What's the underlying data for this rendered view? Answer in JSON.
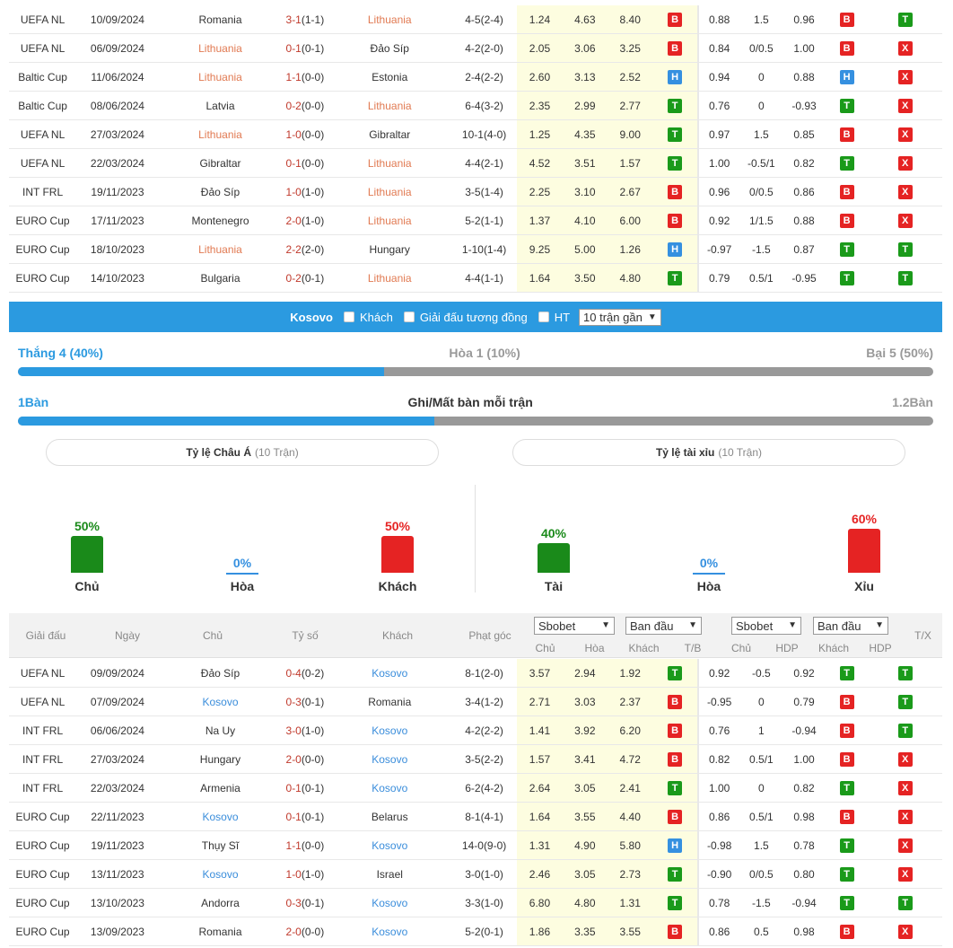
{
  "table1": {
    "rows": [
      {
        "league": "UEFA NL",
        "date": "10/09/2024",
        "home": "Romania",
        "score": "3-1",
        "ht": "(1-1)",
        "away": "Lithuania",
        "hl": "away",
        "corner": "4-5(2-4)",
        "o1": "1.24",
        "o2": "4.63",
        "o3": "8.40",
        "r1": "B",
        "ah": "0.88",
        "hdp": "1.5",
        "aa": "0.96",
        "r2": "B",
        "r3": "T"
      },
      {
        "league": "UEFA NL",
        "date": "06/09/2024",
        "home": "Lithuania",
        "score": "0-1",
        "ht": "(0-1)",
        "away": "Đảo Síp",
        "hl": "home",
        "corner": "4-2(2-0)",
        "o1": "2.05",
        "o2": "3.06",
        "o3": "3.25",
        "r1": "B",
        "ah": "0.84",
        "hdp": "0/0.5",
        "aa": "1.00",
        "r2": "B",
        "r3": "X"
      },
      {
        "league": "Baltic Cup",
        "date": "11/06/2024",
        "home": "Lithuania",
        "score": "1-1",
        "ht": "(0-0)",
        "away": "Estonia",
        "hl": "home",
        "corner": "2-4(2-2)",
        "o1": "2.60",
        "o2": "3.13",
        "o3": "2.52",
        "r1": "H",
        "ah": "0.94",
        "hdp": "0",
        "aa": "0.88",
        "r2": "H",
        "r3": "X"
      },
      {
        "league": "Baltic Cup",
        "date": "08/06/2024",
        "home": "Latvia",
        "score": "0-2",
        "ht": "(0-0)",
        "away": "Lithuania",
        "hl": "away",
        "corner": "6-4(3-2)",
        "o1": "2.35",
        "o2": "2.99",
        "o3": "2.77",
        "r1": "T",
        "ah": "0.76",
        "hdp": "0",
        "aa": "-0.93",
        "r2": "T",
        "r3": "X"
      },
      {
        "league": "UEFA NL",
        "date": "27/03/2024",
        "home": "Lithuania",
        "score": "1-0",
        "ht": "(0-0)",
        "away": "Gibraltar",
        "hl": "home",
        "corner": "10-1(4-0)",
        "o1": "1.25",
        "o2": "4.35",
        "o3": "9.00",
        "r1": "T",
        "ah": "0.97",
        "hdp": "1.5",
        "aa": "0.85",
        "r2": "B",
        "r3": "X"
      },
      {
        "league": "UEFA NL",
        "date": "22/03/2024",
        "home": "Gibraltar",
        "score": "0-1",
        "ht": "(0-0)",
        "away": "Lithuania",
        "hl": "away",
        "corner": "4-4(2-1)",
        "o1": "4.52",
        "o2": "3.51",
        "o3": "1.57",
        "r1": "T",
        "ah": "1.00",
        "hdp": "-0.5/1",
        "aa": "0.82",
        "r2": "T",
        "r3": "X"
      },
      {
        "league": "INT FRL",
        "date": "19/11/2023",
        "home": "Đảo Síp",
        "score": "1-0",
        "ht": "(1-0)",
        "away": "Lithuania",
        "hl": "away",
        "corner": "3-5(1-4)",
        "o1": "2.25",
        "o2": "3.10",
        "o3": "2.67",
        "r1": "B",
        "ah": "0.96",
        "hdp": "0/0.5",
        "aa": "0.86",
        "r2": "B",
        "r3": "X"
      },
      {
        "league": "EURO Cup",
        "date": "17/11/2023",
        "home": "Montenegro",
        "score": "2-0",
        "ht": "(1-0)",
        "away": "Lithuania",
        "hl": "away",
        "corner": "5-2(1-1)",
        "o1": "1.37",
        "o2": "4.10",
        "o3": "6.00",
        "r1": "B",
        "ah": "0.92",
        "hdp": "1/1.5",
        "aa": "0.88",
        "r2": "B",
        "r3": "X"
      },
      {
        "league": "EURO Cup",
        "date": "18/10/2023",
        "home": "Lithuania",
        "score": "2-2",
        "ht": "(2-0)",
        "away": "Hungary",
        "hl": "home",
        "corner": "1-10(1-4)",
        "o1": "9.25",
        "o2": "5.00",
        "o3": "1.26",
        "r1": "H",
        "ah": "-0.97",
        "hdp": "-1.5",
        "aa": "0.87",
        "r2": "T",
        "r3": "T"
      },
      {
        "league": "EURO Cup",
        "date": "14/10/2023",
        "home": "Bulgaria",
        "score": "0-2",
        "ht": "(0-1)",
        "away": "Lithuania",
        "hl": "away",
        "corner": "4-4(1-1)",
        "o1": "1.64",
        "o2": "3.50",
        "o3": "4.80",
        "r1": "T",
        "ah": "0.79",
        "hdp": "0.5/1",
        "aa": "-0.95",
        "r2": "T",
        "r3": "T"
      }
    ]
  },
  "filter": {
    "team": "Kosovo",
    "away_label": "Khách",
    "same_league_label": "Giải đấu tương đồng",
    "ht_label": "HT",
    "range_select": "10 trận gần"
  },
  "summary": {
    "win": "Thắng 4 (40%)",
    "draw": "Hòa 1 (10%)",
    "loss": "Bại 5 (50%)",
    "win_fraction": 0.4,
    "goals_for": "1Bàn",
    "goals_title": "Ghi/Mất bàn mỗi trận",
    "goals_against": "1.2Bàn",
    "goals_fraction": 0.455
  },
  "asian": {
    "title": "Tỷ lệ Châu Á",
    "sub": "(10 Trận)",
    "items": [
      {
        "pct": "50%",
        "label": "Chủ",
        "value": 50,
        "color": "#1a8a1a"
      },
      {
        "pct": "0%",
        "label": "Hòa",
        "value": 0,
        "color": "#3590e0"
      },
      {
        "pct": "50%",
        "label": "Khách",
        "value": 50,
        "color": "#e52323"
      }
    ]
  },
  "overunder": {
    "title": "Tỷ lệ tài xỉu",
    "sub": "(10 Trận)",
    "items": [
      {
        "pct": "40%",
        "label": "Tài",
        "value": 40,
        "color": "#1a8a1a"
      },
      {
        "pct": "0%",
        "label": "Hòa",
        "value": 0,
        "color": "#3590e0"
      },
      {
        "pct": "60%",
        "label": "Xỉu",
        "value": 60,
        "color": "#e52323"
      }
    ]
  },
  "header2": {
    "league": "Giải đấu",
    "date": "Ngày",
    "home": "Chủ",
    "score": "Tỷ số",
    "away": "Khách",
    "corner": "Phạt góc",
    "bookmaker1": "Sbobet",
    "type1": "Ban đầu",
    "bookmaker2": "Sbobet",
    "type2": "Ban đầu",
    "oh": "Chủ",
    "od": "Hòa",
    "oa": "Khách",
    "tb": "T/B",
    "ah": "Chủ",
    "hdp": "HDP",
    "aa": "Khách",
    "hdp2": "HDP",
    "tx": "T/X"
  },
  "table2": {
    "rows": [
      {
        "league": "UEFA NL",
        "date": "09/09/2024",
        "home": "Đảo Síp",
        "score": "0-4",
        "ht": "(0-2)",
        "away": "Kosovo",
        "hl": "away",
        "corner": "8-1(2-0)",
        "o1": "3.57",
        "o2": "2.94",
        "o3": "1.92",
        "r1": "T",
        "ah": "0.92",
        "hdp": "-0.5",
        "aa": "0.92",
        "r2": "T",
        "r3": "T"
      },
      {
        "league": "UEFA NL",
        "date": "07/09/2024",
        "home": "Kosovo",
        "score": "0-3",
        "ht": "(0-1)",
        "away": "Romania",
        "hl": "home",
        "corner": "3-4(1-2)",
        "o1": "2.71",
        "o2": "3.03",
        "o3": "2.37",
        "r1": "B",
        "ah": "-0.95",
        "hdp": "0",
        "aa": "0.79",
        "r2": "B",
        "r3": "T"
      },
      {
        "league": "INT FRL",
        "date": "06/06/2024",
        "home": "Na Uy",
        "score": "3-0",
        "ht": "(1-0)",
        "away": "Kosovo",
        "hl": "away",
        "corner": "4-2(2-2)",
        "o1": "1.41",
        "o2": "3.92",
        "o3": "6.20",
        "r1": "B",
        "ah": "0.76",
        "hdp": "1",
        "aa": "-0.94",
        "r2": "B",
        "r3": "T"
      },
      {
        "league": "INT FRL",
        "date": "27/03/2024",
        "home": "Hungary",
        "score": "2-0",
        "ht": "(0-0)",
        "away": "Kosovo",
        "hl": "away",
        "corner": "3-5(2-2)",
        "o1": "1.57",
        "o2": "3.41",
        "o3": "4.72",
        "r1": "B",
        "ah": "0.82",
        "hdp": "0.5/1",
        "aa": "1.00",
        "r2": "B",
        "r3": "X"
      },
      {
        "league": "INT FRL",
        "date": "22/03/2024",
        "home": "Armenia",
        "score": "0-1",
        "ht": "(0-1)",
        "away": "Kosovo",
        "hl": "away",
        "corner": "6-2(4-2)",
        "o1": "2.64",
        "o2": "3.05",
        "o3": "2.41",
        "r1": "T",
        "ah": "1.00",
        "hdp": "0",
        "aa": "0.82",
        "r2": "T",
        "r3": "X"
      },
      {
        "league": "EURO Cup",
        "date": "22/11/2023",
        "home": "Kosovo",
        "score": "0-1",
        "ht": "(0-1)",
        "away": "Belarus",
        "hl": "home",
        "corner": "8-1(4-1)",
        "o1": "1.64",
        "o2": "3.55",
        "o3": "4.40",
        "r1": "B",
        "ah": "0.86",
        "hdp": "0.5/1",
        "aa": "0.98",
        "r2": "B",
        "r3": "X"
      },
      {
        "league": "EURO Cup",
        "date": "19/11/2023",
        "home": "Thụy Sĩ",
        "score": "1-1",
        "ht": "(0-0)",
        "away": "Kosovo",
        "hl": "away",
        "corner": "14-0(9-0)",
        "o1": "1.31",
        "o2": "4.90",
        "o3": "5.80",
        "r1": "H",
        "ah": "-0.98",
        "hdp": "1.5",
        "aa": "0.78",
        "r2": "T",
        "r3": "X"
      },
      {
        "league": "EURO Cup",
        "date": "13/11/2023",
        "home": "Kosovo",
        "score": "1-0",
        "ht": "(1-0)",
        "away": "Israel",
        "hl": "home",
        "corner": "3-0(1-0)",
        "o1": "2.46",
        "o2": "3.05",
        "o3": "2.73",
        "r1": "T",
        "ah": "-0.90",
        "hdp": "0/0.5",
        "aa": "0.80",
        "r2": "T",
        "r3": "X"
      },
      {
        "league": "EURO Cup",
        "date": "13/10/2023",
        "home": "Andorra",
        "score": "0-3",
        "ht": "(0-1)",
        "away": "Kosovo",
        "hl": "away",
        "corner": "3-3(1-0)",
        "o1": "6.80",
        "o2": "4.80",
        "o3": "1.31",
        "r1": "T",
        "ah": "0.78",
        "hdp": "-1.5",
        "aa": "-0.94",
        "r2": "T",
        "r3": "T"
      },
      {
        "league": "EURO Cup",
        "date": "13/09/2023",
        "home": "Romania",
        "score": "2-0",
        "ht": "(0-0)",
        "away": "Kosovo",
        "hl": "away",
        "corner": "5-2(0-1)",
        "o1": "1.86",
        "o2": "3.35",
        "o3": "3.55",
        "r1": "B",
        "ah": "0.86",
        "hdp": "0.5",
        "aa": "0.98",
        "r2": "B",
        "r3": "X"
      }
    ]
  }
}
